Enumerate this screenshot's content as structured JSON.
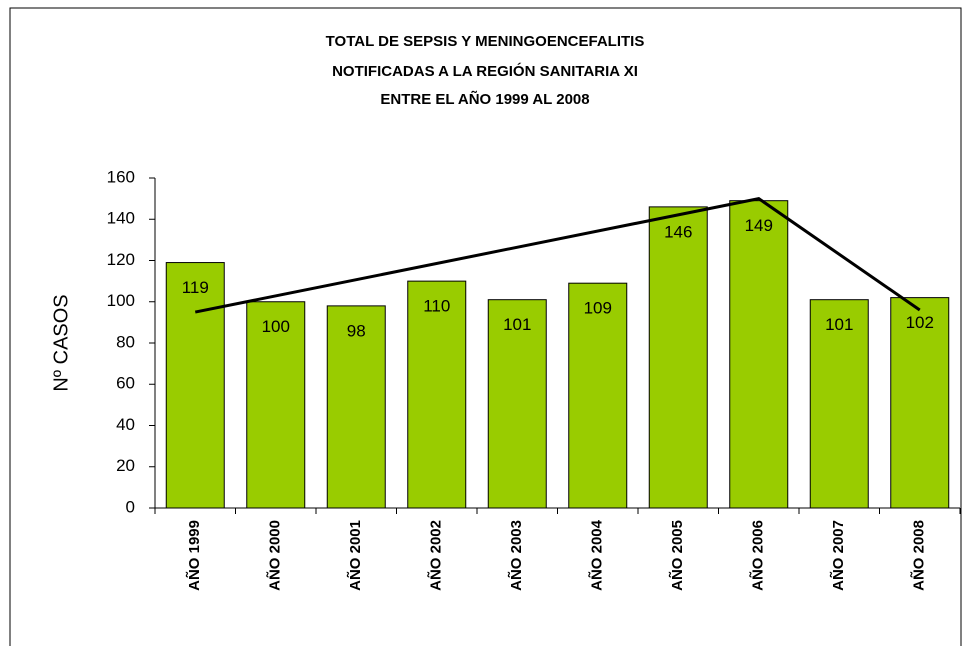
{
  "chart_data": {
    "type": "bar",
    "title": [
      "TOTAL DE SEPSIS Y MENINGOENCEFALITIS",
      "NOTIFICADAS A LA REGIÓN SANITARIA XI",
      "ENTRE EL AÑO 1999 AL 2008"
    ],
    "y_label": "Nº CASOS",
    "categories": [
      "AÑO 1999",
      "AÑO 2000",
      "AÑO 2001",
      "AÑO 2002",
      "AÑO 2003",
      "AÑO 2004",
      "AÑO 2005",
      "AÑO 2006",
      "AÑO 2007",
      "AÑO 2008"
    ],
    "values": [
      119,
      100,
      98,
      110,
      101,
      109,
      146,
      149,
      101,
      102
    ],
    "color": "#99cc00",
    "ylim": [
      0,
      160
    ],
    "yticks": [
      0,
      20,
      40,
      60,
      80,
      100,
      120,
      140,
      160
    ],
    "trend": {
      "categories": [
        "AÑO 1999",
        "AÑO 2006",
        "AÑO 2008"
      ],
      "values": [
        95,
        150,
        96
      ],
      "color": "#000000"
    }
  }
}
